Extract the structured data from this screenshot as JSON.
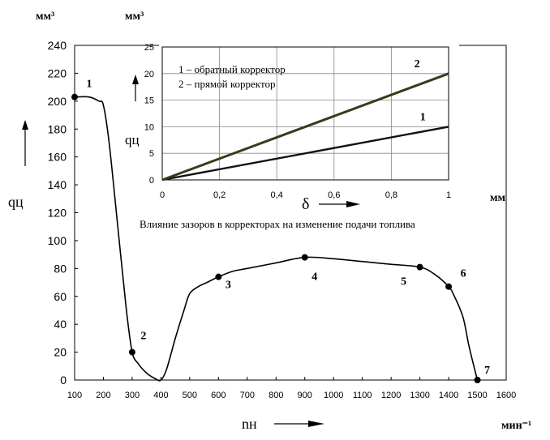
{
  "chart_data": [
    {
      "type": "line",
      "ylabel": "qц",
      "y_unit": "мм³",
      "xlabel": "nн",
      "x_unit": "мин⁻¹",
      "xlim": [
        100,
        1600
      ],
      "ylim": [
        0,
        240
      ],
      "x_ticks": [
        100,
        200,
        300,
        400,
        500,
        600,
        700,
        800,
        900,
        1000,
        1100,
        1200,
        1300,
        1400,
        1500,
        1600
      ],
      "y_ticks": [
        0,
        20,
        40,
        60,
        80,
        100,
        120,
        140,
        160,
        180,
        200,
        220,
        240
      ],
      "grid": false,
      "series": [
        {
          "name": "",
          "points": [
            [
              100,
              203
            ],
            [
              150,
              203
            ],
            [
              185,
              200
            ],
            [
              200,
              197
            ],
            [
              220,
              170
            ],
            [
              250,
              110
            ],
            [
              280,
              50
            ],
            [
              300,
              20
            ],
            [
              320,
              12
            ],
            [
              350,
              5
            ],
            [
              380,
              1
            ],
            [
              400,
              0
            ],
            [
              420,
              8
            ],
            [
              450,
              30
            ],
            [
              480,
              50
            ],
            [
              500,
              62
            ],
            [
              530,
              67
            ],
            [
              560,
              70
            ],
            [
              600,
              74
            ],
            [
              650,
              78
            ],
            [
              700,
              80
            ],
            [
              800,
              84
            ],
            [
              900,
              88
            ],
            [
              1000,
              87
            ],
            [
              1100,
              85
            ],
            [
              1200,
              83
            ],
            [
              1300,
              81
            ],
            [
              1350,
              76
            ],
            [
              1400,
              67
            ],
            [
              1420,
              60
            ],
            [
              1450,
              45
            ],
            [
              1470,
              25
            ],
            [
              1490,
              8
            ],
            [
              1500,
              0
            ]
          ]
        }
      ],
      "markers": [
        {
          "label": "1",
          "x": 100,
          "y": 203
        },
        {
          "label": "2",
          "x": 300,
          "y": 20
        },
        {
          "label": "3",
          "x": 600,
          "y": 74
        },
        {
          "label": "4",
          "x": 900,
          "y": 88
        },
        {
          "label": "5",
          "x": 1300,
          "y": 81
        },
        {
          "label": "6",
          "x": 1400,
          "y": 67
        },
        {
          "label": "7",
          "x": 1500,
          "y": 0
        }
      ]
    },
    {
      "type": "line",
      "title": "Влияние зазоров в корректорах на изменение подачи топлива",
      "ylabel": "qц",
      "y_unit": "мм³",
      "xlabel": "δ",
      "x_unit": "мм",
      "xlim": [
        0,
        1
      ],
      "ylim": [
        0,
        25
      ],
      "x_ticks": [
        "0",
        "0,2",
        "0,4",
        "0,6",
        "0,8",
        "1"
      ],
      "y_ticks": [
        0,
        5,
        10,
        15,
        20,
        25
      ],
      "grid": true,
      "legend": [
        "1 – обратный корректор",
        "2 – прямой корректор"
      ],
      "series": [
        {
          "name": "1",
          "x": [
            0,
            1
          ],
          "y": [
            0,
            10
          ],
          "color": "#111111"
        },
        {
          "name": "2",
          "x": [
            0,
            1
          ],
          "y": [
            0,
            20
          ],
          "color": "#3a3a1a"
        }
      ]
    }
  ]
}
